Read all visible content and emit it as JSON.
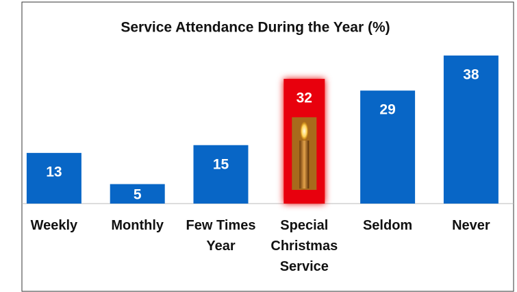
{
  "chart_data": {
    "type": "bar",
    "title": "Service Attendance During the Year (%)",
    "categories": [
      "Weekly",
      "Monthly",
      "Few Times Year",
      "Special Christmas Service",
      "Seldom",
      "Never"
    ],
    "values": [
      13,
      5,
      15,
      32,
      29,
      38
    ],
    "colors": [
      "#0866c6",
      "#0866c6",
      "#0866c6",
      "#e8000a",
      "#0866c6",
      "#0866c6"
    ]
  }
}
